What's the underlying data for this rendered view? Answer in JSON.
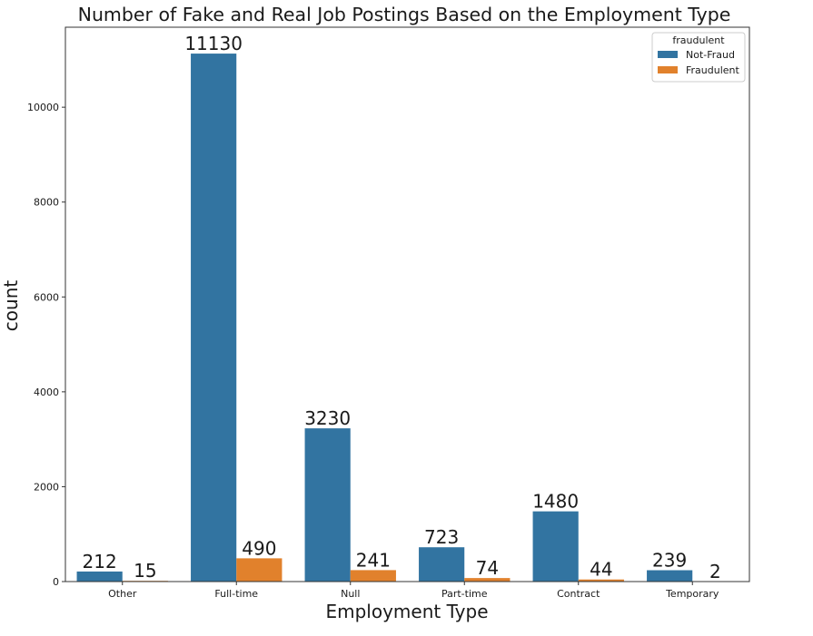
{
  "chart_data": {
    "type": "bar",
    "title": "Number of Fake and Real Job Postings Based on the Employment Type",
    "xlabel": "Employment Type",
    "ylabel": "count",
    "categories": [
      "Other",
      "Full-time",
      "Null",
      "Part-time",
      "Contract",
      "Temporary"
    ],
    "series": [
      {
        "name": "Not-Fraud",
        "color": "#3274a1",
        "values": [
          212,
          11130,
          3230,
          723,
          1480,
          239
        ]
      },
      {
        "name": "Fraudulent",
        "color": "#e1812c",
        "values": [
          15,
          490,
          241,
          74,
          44,
          2
        ]
      }
    ],
    "data_labels": [
      [
        "212",
        "11130",
        "3230",
        "723",
        "1480",
        "239"
      ],
      [
        "15",
        "490",
        "241",
        "74",
        "44",
        "2"
      ]
    ],
    "yticks": [
      0,
      2000,
      4000,
      6000,
      8000,
      10000
    ],
    "ytick_labels": [
      "0",
      "2000",
      "4000",
      "6000",
      "8000",
      "10000"
    ],
    "ylim": [
      0,
      11686
    ],
    "legend": {
      "title": "fraudulent",
      "placement": "top-right"
    },
    "grid": false
  }
}
